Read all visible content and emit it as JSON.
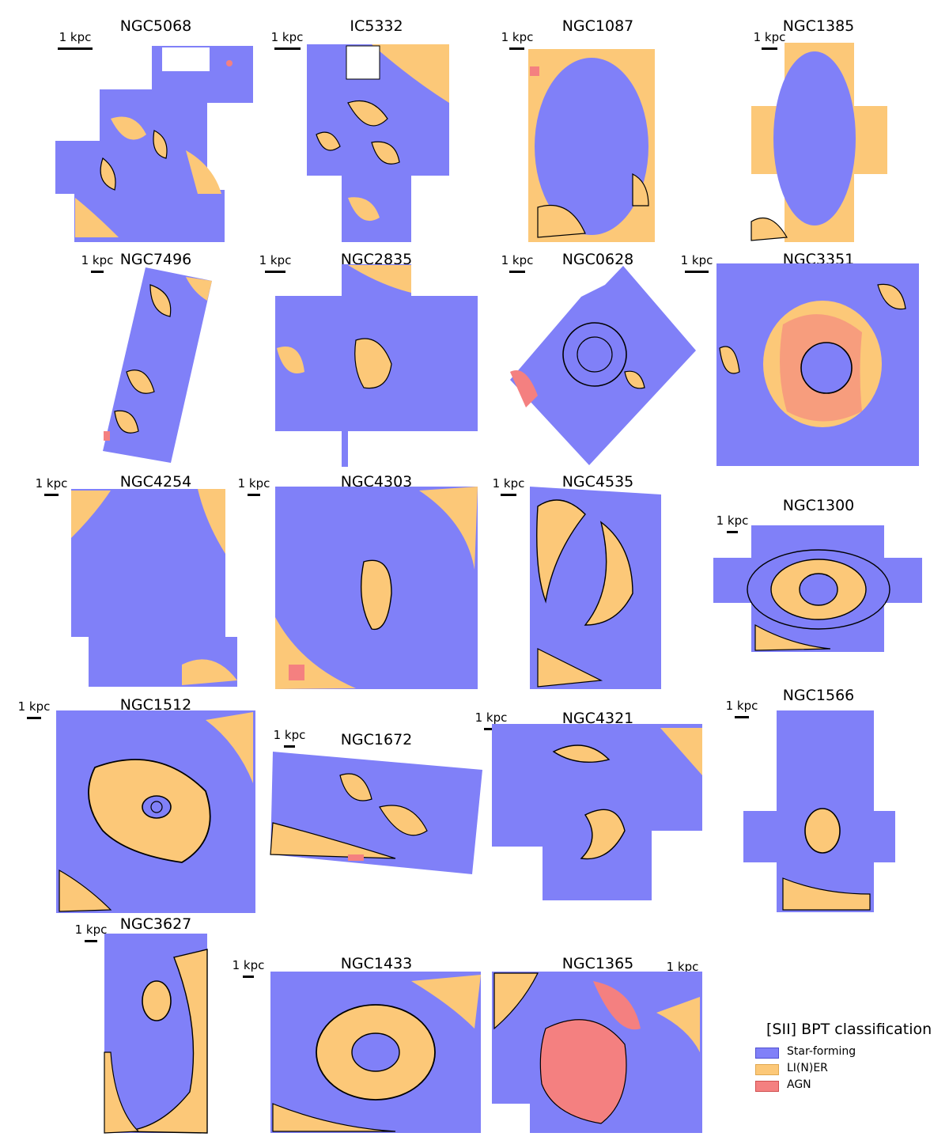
{
  "scale_label": "1 kpc",
  "colors": {
    "sf": "#8080f8",
    "liner": "#fcc878",
    "agn": "#f48080",
    "contour": "#000000"
  },
  "legend": {
    "title": "[SII] BPT classification",
    "items": [
      {
        "label": "Star-forming",
        "color": "#8080f8",
        "edge": "#5050d0"
      },
      {
        "label": "LI(N)ER",
        "color": "#fcc878",
        "edge": "#e0a850"
      },
      {
        "label": "AGN",
        "color": "#f48080",
        "edge": "#d05050"
      }
    ]
  },
  "galaxies": [
    "NGC5068",
    "IC5332",
    "NGC1087",
    "NGC1385",
    "NGC7496",
    "NGC2835",
    "NGC0628",
    "NGC3351",
    "NGC4254",
    "NGC4303",
    "NGC4535",
    "NGC1300",
    "NGC1512",
    "NGC1672",
    "NGC4321",
    "NGC1566",
    "NGC3627",
    "NGC1433",
    "NGC1365"
  ]
}
